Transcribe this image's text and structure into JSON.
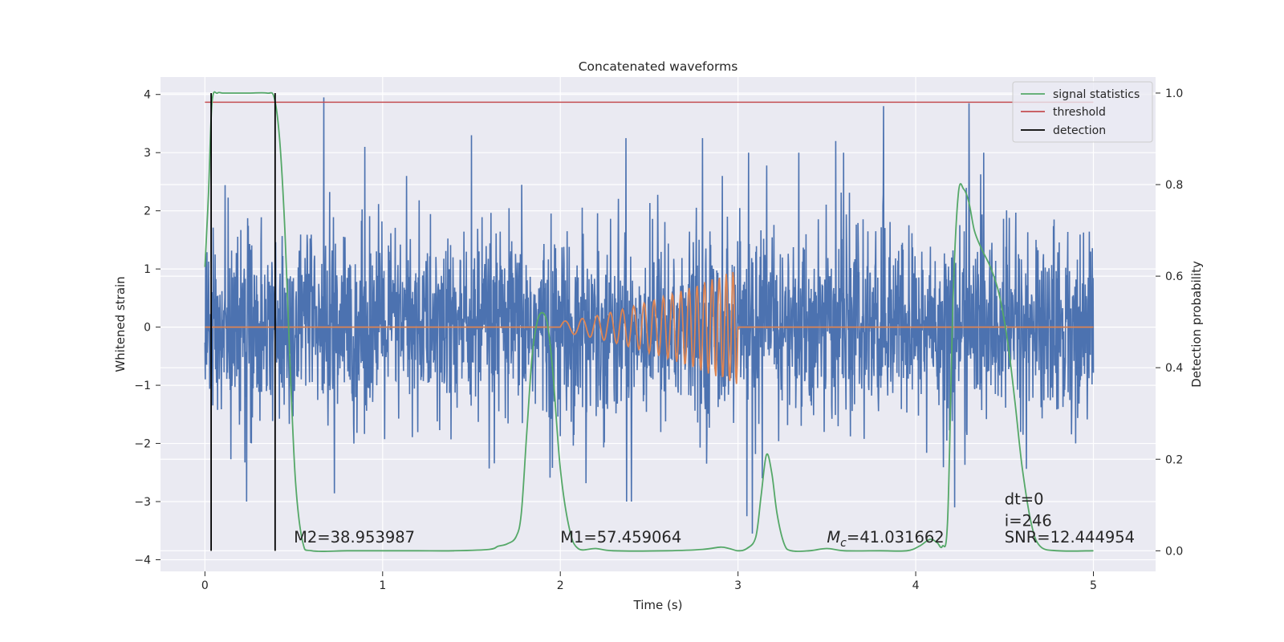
{
  "chart_data": {
    "type": "line",
    "title": "Concatenated waveforms",
    "xlabel": "Time (s)",
    "ylabel": "Whitened strain",
    "y2label": "Detection probability",
    "xlim": [
      -0.25,
      5.35
    ],
    "ylim": [
      -4.2,
      4.3
    ],
    "y2lim": [
      -0.045,
      1.035
    ],
    "x_ticks": [
      0,
      1,
      2,
      3,
      4,
      5
    ],
    "y_ticks": [
      -4,
      -3,
      -2,
      -1,
      0,
      1,
      2,
      3,
      4
    ],
    "y2_ticks": [
      0.0,
      0.2,
      0.4,
      0.6,
      0.8,
      1.0
    ],
    "tick_labels": {
      "x": [
        "0",
        "1",
        "2",
        "3",
        "4",
        "5"
      ],
      "y": [
        "−4",
        "−3",
        "−2",
        "−1",
        "0",
        "1",
        "2",
        "3",
        "4"
      ],
      "y2": [
        "0.0",
        "0.2",
        "0.4",
        "0.6",
        "0.8",
        "1.0"
      ]
    },
    "grid": true,
    "legend_position": "top-right",
    "series": [
      {
        "name": "",
        "axis": "left",
        "color": "#4c72b0",
        "kind": "noise",
        "x_range": [
          0,
          5
        ],
        "typical_range": [
          -1.6,
          1.6
        ],
        "peaks": [
          {
            "x": 0.67,
            "y": 3.95
          },
          {
            "x": 0.9,
            "y": 3.1
          },
          {
            "x": 1.5,
            "y": 3.3
          },
          {
            "x": 2.37,
            "y": 3.25
          },
          {
            "x": 2.8,
            "y": 3.25
          },
          {
            "x": 3.55,
            "y": 3.2
          },
          {
            "x": 3.82,
            "y": 3.8
          },
          {
            "x": 4.3,
            "y": 3.85
          },
          {
            "x": 3.05,
            "y": -3.25
          },
          {
            "x": 3.08,
            "y": -3.55
          },
          {
            "x": 2.4,
            "y": -3.0
          },
          {
            "x": 4.22,
            "y": -3.1
          }
        ]
      },
      {
        "name": "",
        "axis": "left",
        "color": "#dd8452",
        "kind": "chirp",
        "onset": 2.0,
        "end": 3.0,
        "peak_amplitude": 1.0
      },
      {
        "name": "signal statistics",
        "axis": "right",
        "color": "#55a868",
        "x": [
          0.0,
          0.02,
          0.04,
          0.07,
          0.1,
          0.15,
          0.25,
          0.35,
          0.39,
          0.42,
          0.45,
          0.48,
          0.51,
          0.55,
          0.6,
          0.8,
          1.0,
          1.2,
          1.4,
          1.6,
          1.65,
          1.7,
          1.75,
          1.78,
          1.81,
          1.84,
          1.87,
          1.9,
          1.93,
          1.96,
          2.0,
          2.05,
          2.1,
          2.2,
          2.3,
          2.6,
          2.8,
          2.9,
          2.95,
          3.0,
          3.05,
          3.1,
          3.13,
          3.16,
          3.19,
          3.22,
          3.26,
          3.3,
          3.4,
          3.5,
          3.6,
          3.8,
          3.95,
          4.02,
          4.08,
          4.12,
          4.15,
          4.18,
          4.21,
          4.24,
          4.27,
          4.3,
          4.33,
          4.37,
          4.42,
          4.47,
          4.52,
          4.56,
          4.6,
          4.65,
          4.7,
          4.8,
          5.0
        ],
        "y": [
          0.62,
          0.78,
          0.98,
          1.0,
          1.0,
          1.0,
          1.0,
          1.0,
          0.99,
          0.9,
          0.7,
          0.4,
          0.15,
          0.02,
          0.0,
          0.0,
          0.0,
          0.0,
          0.0,
          0.003,
          0.01,
          0.015,
          0.03,
          0.08,
          0.25,
          0.42,
          0.5,
          0.52,
          0.49,
          0.38,
          0.18,
          0.05,
          0.005,
          0.005,
          0.0,
          0.0,
          0.003,
          0.008,
          0.005,
          0.0,
          0.005,
          0.03,
          0.12,
          0.21,
          0.17,
          0.08,
          0.015,
          0.0,
          0.0,
          0.005,
          0.0,
          0.0,
          0.0,
          0.01,
          0.025,
          0.018,
          0.01,
          0.07,
          0.55,
          0.78,
          0.79,
          0.76,
          0.7,
          0.66,
          0.62,
          0.56,
          0.45,
          0.32,
          0.18,
          0.06,
          0.01,
          0.0,
          0.0
        ]
      },
      {
        "name": "threshold",
        "axis": "right",
        "color": "#c44e52",
        "x": [
          0,
          5
        ],
        "y": [
          0.98,
          0.98
        ]
      },
      {
        "name": "detection",
        "axis": "right",
        "color": "#000000",
        "kind": "vertical-lines",
        "x": [
          0.035,
          0.395
        ]
      }
    ],
    "annotations": [
      {
        "id": "m2",
        "text": "M2=38.953987",
        "x": 0.5,
        "y": -3.7
      },
      {
        "id": "m1",
        "text": "M1=57.459064",
        "x": 2.0,
        "y": -3.7
      },
      {
        "id": "mc",
        "text": "=41.031662",
        "symbol": "M",
        "subscript": "c",
        "x": 3.5,
        "y": -3.7
      },
      {
        "id": "dt",
        "text": "dt=0",
        "x": 4.5,
        "y": -3.05
      },
      {
        "id": "i",
        "text": "i=246",
        "x": 4.5,
        "y": -3.42
      },
      {
        "id": "snr",
        "text": "SNR=12.444954",
        "x": 4.5,
        "y": -3.7
      }
    ]
  },
  "colors": {
    "plot_background": "#eaeaf2",
    "grid": "#ffffff",
    "text": "#262626",
    "noise": "#4c72b0",
    "template": "#dd8452",
    "statistics": "#55a868",
    "threshold": "#c44e52",
    "detection": "#000000"
  }
}
